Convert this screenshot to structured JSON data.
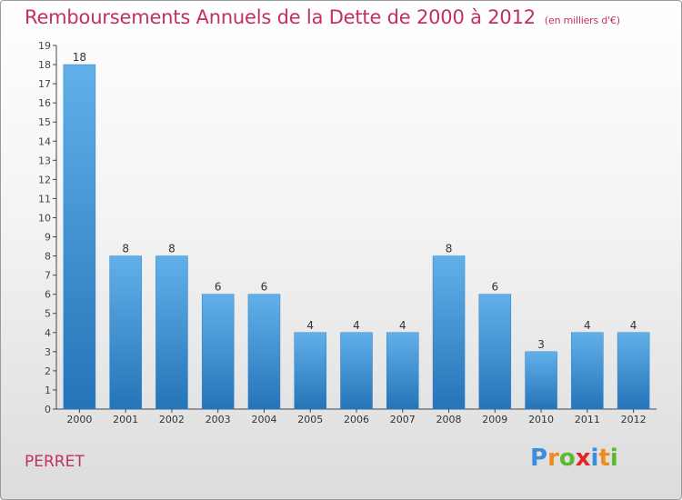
{
  "title": "Remboursements Annuels de la Dette de 2000 à 2012",
  "subtitle": "(en milliers d'€)",
  "town": "PERRET",
  "logo": {
    "letters": [
      "P",
      "r",
      "o",
      "x",
      "i",
      "t",
      "i"
    ],
    "colors": [
      "#3b8fd9",
      "#f08a1d",
      "#5cb82e",
      "#e2262b",
      "#3b8fd9",
      "#f08a1d",
      "#5cb82e"
    ]
  },
  "colors": {
    "bar": "#3a93dc",
    "bar_light": "#62b0ea",
    "bar_dark": "#2474b8",
    "title": "#c2305f"
  },
  "chart_data": {
    "type": "bar",
    "categories": [
      "2000",
      "2001",
      "2002",
      "2003",
      "2004",
      "2005",
      "2006",
      "2007",
      "2008",
      "2009",
      "2010",
      "2011",
      "2012"
    ],
    "values": [
      18,
      8,
      8,
      6,
      6,
      4,
      4,
      4,
      8,
      6,
      3,
      4,
      4
    ],
    "ylim": [
      0,
      19
    ],
    "yticks": [
      0,
      1,
      2,
      3,
      4,
      5,
      6,
      7,
      8,
      9,
      10,
      11,
      12,
      13,
      14,
      15,
      16,
      17,
      18,
      19
    ],
    "grid": false,
    "xlabel": "",
    "ylabel": ""
  }
}
